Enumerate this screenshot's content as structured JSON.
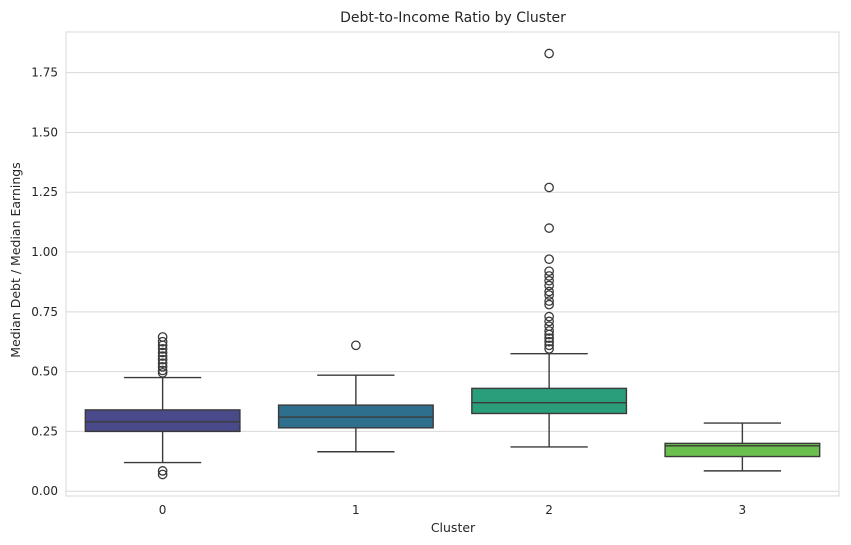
{
  "chart_data": {
    "type": "box",
    "title": "Debt-to-Income Ratio by Cluster",
    "xlabel": "Cluster",
    "ylabel": "Median Debt / Median Earnings",
    "categories": [
      "0",
      "1",
      "2",
      "3"
    ],
    "ylim": [
      -0.02,
      1.92
    ],
    "yticks": [
      "0.00",
      "0.25",
      "0.50",
      "0.75",
      "1.00",
      "1.25",
      "1.50",
      "1.75"
    ],
    "grid": true,
    "boxes": [
      {
        "category": "0",
        "color": "#4a4a8a",
        "whisker_low": 0.12,
        "q1": 0.25,
        "median": 0.29,
        "q3": 0.34,
        "whisker_high": 0.475,
        "outliers": [
          0.07,
          0.085,
          0.495,
          0.505,
          0.52,
          0.535,
          0.55,
          0.565,
          0.58,
          0.595,
          0.61,
          0.625,
          0.645
        ]
      },
      {
        "category": "1",
        "color": "#2e6f8e",
        "whisker_low": 0.165,
        "q1": 0.265,
        "median": 0.31,
        "q3": 0.36,
        "whisker_high": 0.485,
        "outliers": [
          0.61
        ]
      },
      {
        "category": "2",
        "color": "#2a9d7a",
        "whisker_low": 0.185,
        "q1": 0.325,
        "median": 0.37,
        "q3": 0.43,
        "whisker_high": 0.575,
        "outliers": [
          0.595,
          0.61,
          0.625,
          0.64,
          0.655,
          0.67,
          0.69,
          0.71,
          0.73,
          0.78,
          0.795,
          0.82,
          0.835,
          0.86,
          0.88,
          0.9,
          0.92,
          0.97,
          1.1,
          1.27,
          1.83
        ]
      },
      {
        "category": "3",
        "color": "#6bbf4e",
        "whisker_low": 0.085,
        "q1": 0.145,
        "median": 0.19,
        "q3": 0.2,
        "whisker_high": 0.285,
        "outliers": []
      }
    ]
  }
}
